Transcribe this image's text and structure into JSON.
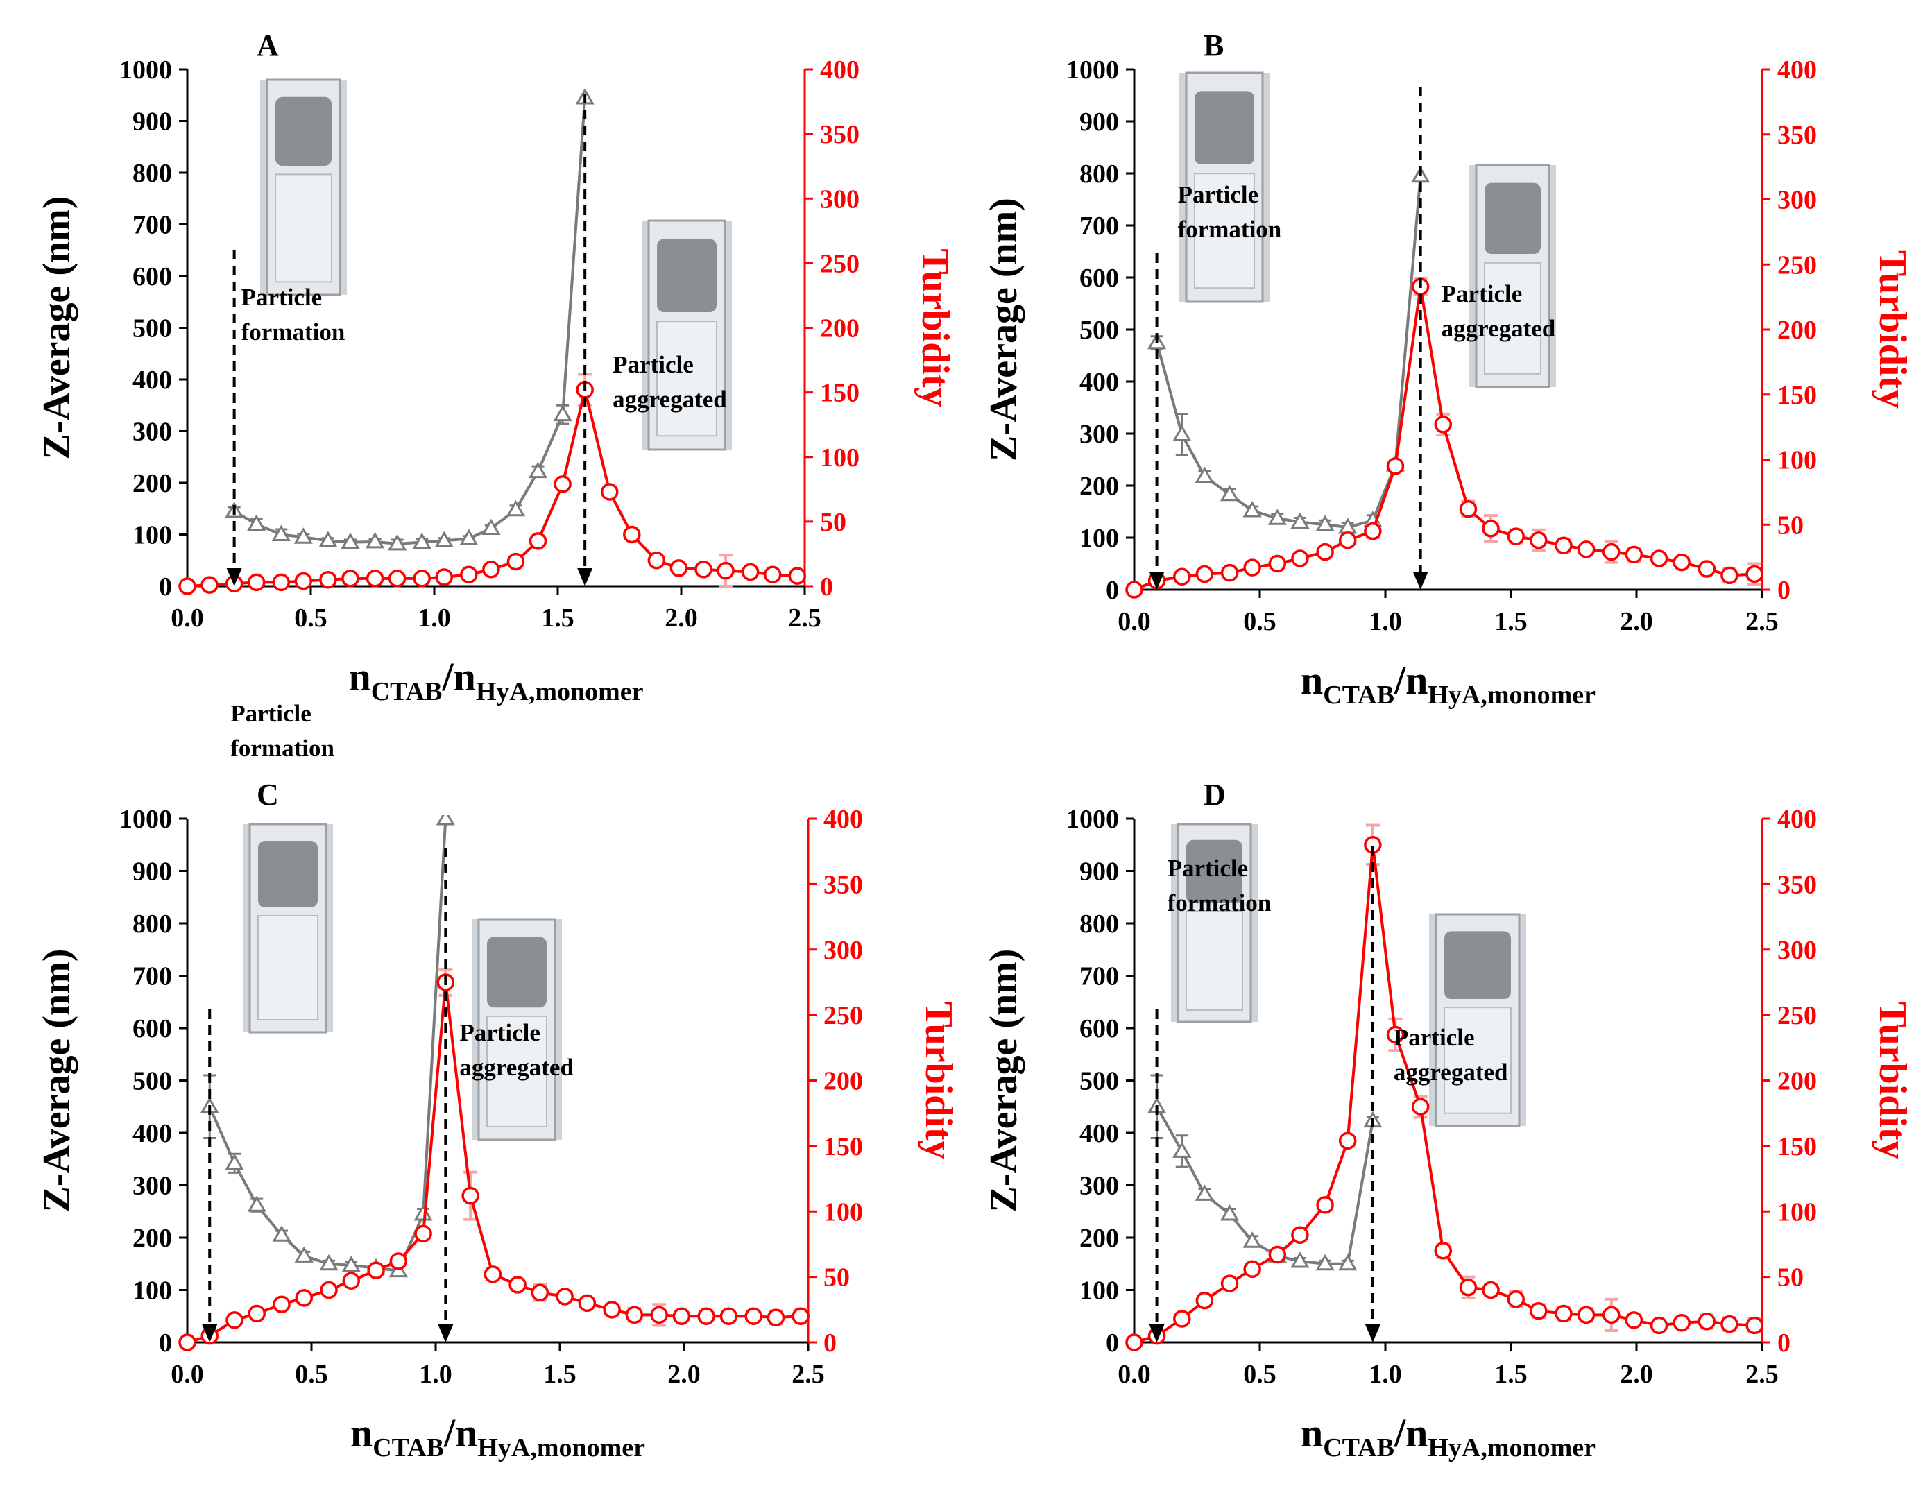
{
  "chart_data": [
    {
      "type": "line",
      "panel": "A",
      "xlabel_main": "n",
      "xlabel_sub1": "CTAB",
      "xlabel_sep": "/n",
      "xlabel_sub2": "HyA,monomer",
      "ylabel_left": "Z-Average  (nm)",
      "ylabel_right": "Turbidity",
      "xlim": [
        0,
        2.5
      ],
      "ylim_left": [
        0,
        1000
      ],
      "ylim_right": [
        0,
        400
      ],
      "xticks": [
        "0.0",
        "0.5",
        "1.0",
        "1.5",
        "2.0",
        "2.5"
      ],
      "yticks_left": [
        "0",
        "100",
        "200",
        "300",
        "400",
        "500",
        "600",
        "700",
        "800",
        "900",
        "1000"
      ],
      "yticks_right": [
        "0",
        "50",
        "100",
        "150",
        "200",
        "250",
        "300",
        "350",
        "400"
      ],
      "colors": {
        "z": "#7a7a7a",
        "turbidity": "#ff0000",
        "turbidity_err": "#f4a7a7"
      },
      "series": [
        {
          "name": "Z-Average (nm)",
          "axis": "left",
          "marker": "triangle",
          "x": [
            0.19,
            0.28,
            0.38,
            0.47,
            0.57,
            0.66,
            0.76,
            0.85,
            0.95,
            1.04,
            1.14,
            1.23,
            1.33,
            1.42,
            1.52,
            1.61
          ],
          "y": [
            145,
            120,
            100,
            95,
            88,
            85,
            86,
            82,
            85,
            88,
            92,
            112,
            148,
            222,
            332,
            945
          ],
          "err": [
            8,
            10,
            10,
            6,
            5,
            5,
            5,
            8,
            6,
            5,
            5,
            6,
            8,
            10,
            18,
            0
          ]
        },
        {
          "name": "Turbidity",
          "axis": "right",
          "marker": "circle",
          "x": [
            0.0,
            0.09,
            0.19,
            0.28,
            0.38,
            0.47,
            0.57,
            0.66,
            0.76,
            0.85,
            0.95,
            1.04,
            1.14,
            1.23,
            1.33,
            1.42,
            1.52,
            1.61,
            1.71,
            1.8,
            1.9,
            1.99,
            2.09,
            2.18,
            2.28,
            2.37,
            2.47
          ],
          "y": [
            0,
            1,
            2,
            3,
            3,
            4,
            5,
            6,
            6,
            6,
            6,
            7,
            9,
            13,
            19,
            35,
            79,
            152,
            73,
            40,
            20,
            14,
            13,
            12,
            11,
            9,
            8
          ],
          "err": [
            0,
            0,
            0,
            0,
            0,
            0,
            0,
            0,
            0,
            0,
            0,
            0,
            0,
            0,
            0,
            3,
            3,
            12,
            2,
            2,
            2,
            3,
            3,
            12,
            2,
            3,
            3
          ]
        }
      ],
      "annotations": [
        {
          "line1": "Particle",
          "line2": "formation",
          "x": 0.19
        },
        {
          "line1": "Particle",
          "line2": "aggregated",
          "x": 1.61
        }
      ]
    },
    {
      "type": "line",
      "panel": "B",
      "xlabel_main": "n",
      "xlabel_sub1": "CTAB",
      "xlabel_sep": "/n",
      "xlabel_sub2": "HyA,monomer",
      "ylabel_left": "Z-Average  (nm)",
      "ylabel_right": "Turbidity",
      "xlim": [
        0,
        2.5
      ],
      "ylim_left": [
        0,
        1000
      ],
      "ylim_right": [
        0,
        400
      ],
      "xticks": [
        "0.0",
        "0.5",
        "1.0",
        "1.5",
        "2.0",
        "2.5"
      ],
      "yticks_left": [
        "0",
        "100",
        "200",
        "300",
        "400",
        "500",
        "600",
        "700",
        "800",
        "900",
        "1000"
      ],
      "yticks_right": [
        "0",
        "50",
        "100",
        "150",
        "200",
        "250",
        "300",
        "350",
        "400"
      ],
      "colors": {
        "z": "#7a7a7a",
        "turbidity": "#ff0000",
        "turbidity_err": "#f4a7a7"
      },
      "series": [
        {
          "name": "Z-Average (nm)",
          "axis": "left",
          "marker": "triangle",
          "x": [
            0.09,
            0.19,
            0.28,
            0.38,
            0.47,
            0.57,
            0.66,
            0.76,
            0.85,
            0.95,
            1.04,
            1.14
          ],
          "y": [
            475,
            298,
            218,
            183,
            152,
            137,
            130,
            125,
            120,
            133,
            240,
            795
          ],
          "err": [
            12,
            40,
            10,
            10,
            8,
            8,
            8,
            8,
            8,
            10,
            10,
            0
          ]
        },
        {
          "name": "Turbidity",
          "axis": "right",
          "marker": "circle",
          "x": [
            0.0,
            0.09,
            0.19,
            0.28,
            0.38,
            0.47,
            0.57,
            0.66,
            0.76,
            0.85,
            0.95,
            1.04,
            1.14,
            1.23,
            1.33,
            1.42,
            1.52,
            1.61,
            1.71,
            1.8,
            1.9,
            1.99,
            2.09,
            2.18,
            2.28,
            2.37,
            2.47
          ],
          "y": [
            0,
            7,
            10,
            12,
            13,
            17,
            20,
            24,
            29,
            38,
            45,
            95,
            233,
            127,
            62,
            47,
            41,
            38,
            34,
            31,
            29,
            27,
            24,
            21,
            16,
            11,
            12
          ],
          "err": [
            0,
            0,
            0,
            0,
            0,
            0,
            0,
            0,
            0,
            0,
            5,
            3,
            6,
            8,
            6,
            10,
            5,
            8,
            5,
            3,
            8,
            5,
            3,
            3,
            3,
            5,
            8
          ]
        }
      ],
      "annotations": [
        {
          "line1": "Particle",
          "line2": "formation",
          "x": 0.09
        },
        {
          "line1": "Particle",
          "line2": "aggregated",
          "x": 1.14
        }
      ]
    },
    {
      "type": "line",
      "panel": "C",
      "xlabel_main": "n",
      "xlabel_sub1": "CTAB",
      "xlabel_sep": "/n",
      "xlabel_sub2": "HyA,monomer",
      "ylabel_left": "Z-Average  (nm)",
      "ylabel_right": "Turbidity",
      "xlim": [
        0,
        2.5
      ],
      "ylim_left": [
        0,
        1000
      ],
      "ylim_right": [
        0,
        400
      ],
      "xticks": [
        "0.0",
        "0.5",
        "1.0",
        "1.5",
        "2.0",
        "2.5"
      ],
      "yticks_left": [
        "0",
        "100",
        "200",
        "300",
        "400",
        "500",
        "600",
        "700",
        "800",
        "900",
        "1000"
      ],
      "yticks_right": [
        "0",
        "50",
        "100",
        "150",
        "200",
        "250",
        "300",
        "350",
        "400"
      ],
      "colors": {
        "z": "#7a7a7a",
        "turbidity": "#ff0000",
        "turbidity_err": "#f4a7a7"
      },
      "series": [
        {
          "name": "Z-Average (nm)",
          "axis": "left",
          "marker": "triangle",
          "x": [
            0.09,
            0.19,
            0.28,
            0.38,
            0.47,
            0.57,
            0.66,
            0.76,
            0.85,
            0.95,
            1.04
          ],
          "y": [
            450,
            342,
            262,
            205,
            165,
            150,
            147,
            142,
            137,
            245,
            1000
          ],
          "err": [
            60,
            18,
            12,
            8,
            8,
            6,
            6,
            6,
            6,
            10,
            0
          ]
        },
        {
          "name": "Turbidity",
          "axis": "right",
          "marker": "circle",
          "x": [
            0.0,
            0.09,
            0.19,
            0.28,
            0.38,
            0.47,
            0.57,
            0.66,
            0.76,
            0.85,
            0.95,
            1.04,
            1.14,
            1.23,
            1.33,
            1.42,
            1.52,
            1.61,
            1.71,
            1.8,
            1.9,
            1.99,
            2.09,
            2.18,
            2.28,
            2.37,
            2.47
          ],
          "y": [
            0,
            5,
            17,
            22,
            29,
            34,
            40,
            47,
            55,
            62,
            83,
            275,
            112,
            52,
            44,
            38,
            35,
            30,
            25,
            21,
            21,
            20,
            20,
            20,
            20,
            19,
            20
          ],
          "err": [
            0,
            0,
            0,
            0,
            0,
            0,
            0,
            0,
            0,
            0,
            0,
            10,
            18,
            4,
            4,
            6,
            3,
            3,
            4,
            5,
            8,
            3,
            3,
            3,
            3,
            5,
            5
          ]
        }
      ],
      "annotations": [
        {
          "line1": "Particle",
          "line2": "formation",
          "x": 0.09
        },
        {
          "line1": "Particle",
          "line2": "aggregated",
          "x": 1.04
        }
      ]
    },
    {
      "type": "line",
      "panel": "D",
      "xlabel_main": "n",
      "xlabel_sub1": "CTAB",
      "xlabel_sep": "/n",
      "xlabel_sub2": "HyA,monomer",
      "ylabel_left": "Z-Average  (nm)",
      "ylabel_right": "Turbidity",
      "xlim": [
        0,
        2.5
      ],
      "ylim_left": [
        0,
        1000
      ],
      "ylim_right": [
        0,
        400
      ],
      "xticks": [
        "0.0",
        "0.5",
        "1.0",
        "1.5",
        "2.0",
        "2.5"
      ],
      "yticks_left": [
        "0",
        "100",
        "200",
        "300",
        "400",
        "500",
        "600",
        "700",
        "800",
        "900",
        "1000"
      ],
      "yticks_right": [
        "0",
        "50",
        "100",
        "150",
        "200",
        "250",
        "300",
        "350",
        "400"
      ],
      "colors": {
        "z": "#7a7a7a",
        "turbidity": "#ff0000",
        "turbidity_err": "#f4a7a7"
      },
      "series": [
        {
          "name": "Z-Average (nm)",
          "axis": "left",
          "marker": "triangle",
          "x": [
            0.09,
            0.19,
            0.28,
            0.38,
            0.47,
            0.57,
            0.66,
            0.76,
            0.85,
            0.95
          ],
          "y": [
            450,
            365,
            283,
            245,
            193,
            165,
            155,
            150,
            150,
            423
          ],
          "err": [
            60,
            30,
            10,
            10,
            10,
            8,
            6,
            6,
            6,
            8
          ]
        },
        {
          "name": "Turbidity",
          "axis": "right",
          "marker": "circle",
          "x": [
            0.0,
            0.09,
            0.19,
            0.28,
            0.38,
            0.47,
            0.57,
            0.66,
            0.76,
            0.85,
            0.95,
            1.04,
            1.14,
            1.23,
            1.33,
            1.42,
            1.52,
            1.61,
            1.71,
            1.8,
            1.9,
            1.99,
            2.09,
            2.18,
            2.28,
            2.37,
            2.47
          ],
          "y": [
            0,
            5,
            18,
            32,
            45,
            56,
            67,
            82,
            105,
            154,
            380,
            235,
            180,
            70,
            42,
            40,
            33,
            24,
            22,
            21,
            21,
            17,
            13,
            15,
            16,
            14,
            13
          ],
          "err": [
            0,
            0,
            0,
            0,
            0,
            0,
            0,
            0,
            0,
            0,
            15,
            12,
            8,
            5,
            8,
            4,
            6,
            5,
            5,
            5,
            12,
            4,
            3,
            3,
            5,
            5,
            5
          ]
        }
      ],
      "annotations": [
        {
          "line1": "Particle",
          "line2": "formation",
          "x": 0.09
        },
        {
          "line1": "Particle",
          "line2": "aggregated",
          "x": 0.95
        }
      ]
    }
  ]
}
